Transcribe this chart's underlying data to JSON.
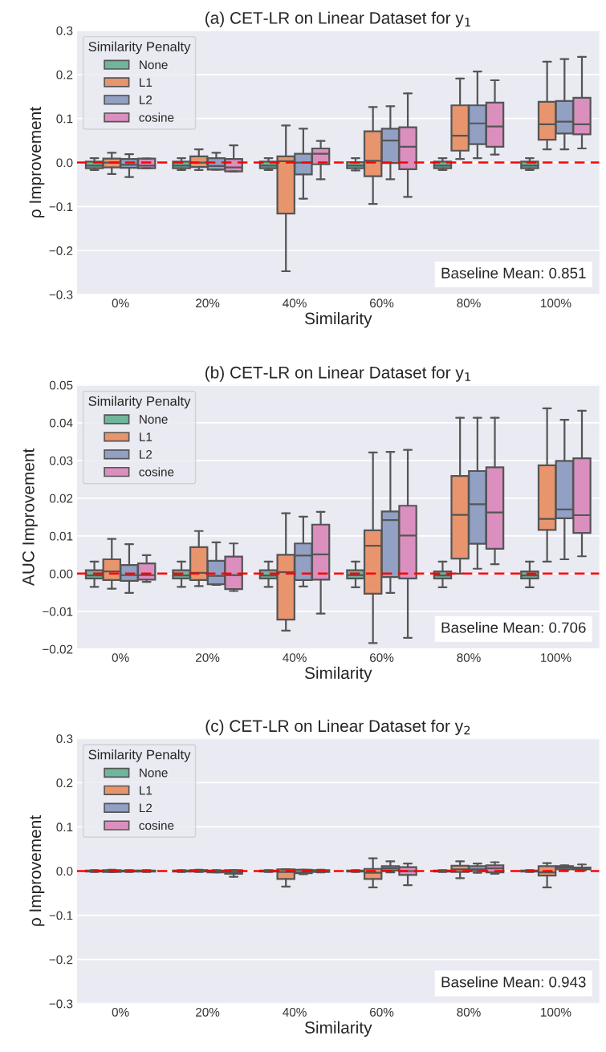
{
  "chart_data": [
    {
      "type": "box",
      "title": "(a) CET-LR on Linear Dataset for y$_{1}$",
      "xlabel": "Similarity",
      "ylabel": "ρ Improvement",
      "legend_title": "Similarity Penalty",
      "legend": "top left",
      "grid": "y",
      "categories": [
        "0%",
        "20%",
        "40%",
        "60%",
        "80%",
        "100%"
      ],
      "ylim": [
        -0.3,
        0.3
      ],
      "yticks": [
        {
          "value": -0.3,
          "label": "−0.3"
        },
        {
          "value": -0.2,
          "label": "−0.2"
        },
        {
          "value": -0.1,
          "label": "−0.1"
        },
        {
          "value": 0,
          "label": "0.0"
        },
        {
          "value": 0.1,
          "label": "0.1"
        },
        {
          "value": 0.2,
          "label": "0.2"
        },
        {
          "value": 0.3,
          "label": "0.3"
        }
      ],
      "ref_lines": [
        {
          "axis": "y",
          "value": 0,
          "color": "#ff0000",
          "line_style": "dashed"
        }
      ],
      "annotations": [
        "Baseline Mean: 0.851"
      ],
      "series": [
        {
          "name": "None",
          "color": "#71b59c",
          "boxes": [
            {
              "low": -0.017,
              "q1": -0.013,
              "median": -0.007,
              "q3": 0.002,
              "high": 0.01
            },
            {
              "low": -0.017,
              "q1": -0.013,
              "median": -0.007,
              "q3": 0.002,
              "high": 0.01
            },
            {
              "low": -0.017,
              "q1": -0.013,
              "median": -0.007,
              "q3": 0.002,
              "high": 0.01
            },
            {
              "low": -0.018,
              "q1": -0.013,
              "median": -0.007,
              "q3": 0.001,
              "high": 0.01
            },
            {
              "low": -0.017,
              "q1": -0.013,
              "median": -0.007,
              "q3": 0.002,
              "high": 0.01
            },
            {
              "low": -0.017,
              "q1": -0.013,
              "median": -0.007,
              "q3": 0.002,
              "high": 0.01
            }
          ]
        },
        {
          "name": "L1",
          "color": "#e8956e",
          "boxes": [
            {
              "low": -0.026,
              "q1": -0.011,
              "median": 0.0,
              "q3": 0.009,
              "high": 0.022
            },
            {
              "low": -0.017,
              "q1": -0.01,
              "median": 0.0,
              "q3": 0.014,
              "high": 0.03
            },
            {
              "low": -0.247,
              "q1": -0.116,
              "median": 0.003,
              "q3": 0.014,
              "high": 0.084
            },
            {
              "low": -0.094,
              "q1": -0.031,
              "median": 0.004,
              "q3": 0.071,
              "high": 0.126
            },
            {
              "low": 0.008,
              "q1": 0.027,
              "median": 0.061,
              "q3": 0.13,
              "high": 0.191
            },
            {
              "low": 0.03,
              "q1": 0.052,
              "median": 0.087,
              "q3": 0.138,
              "high": 0.229
            }
          ]
        },
        {
          "name": "L2",
          "color": "#92a0c4",
          "boxes": [
            {
              "low": -0.033,
              "q1": -0.012,
              "median": -0.005,
              "q3": 0.008,
              "high": 0.019
            },
            {
              "low": -0.016,
              "q1": -0.016,
              "median": -0.008,
              "q3": 0.01,
              "high": 0.022
            },
            {
              "low": -0.082,
              "q1": -0.027,
              "median": 0.0,
              "q3": 0.02,
              "high": 0.077
            },
            {
              "low": -0.038,
              "q1": -0.001,
              "median": 0.05,
              "q3": 0.077,
              "high": 0.128
            },
            {
              "low": 0.01,
              "q1": 0.042,
              "median": 0.089,
              "q3": 0.13,
              "high": 0.207
            },
            {
              "low": 0.03,
              "q1": 0.066,
              "median": 0.093,
              "q3": 0.14,
              "high": 0.235
            }
          ]
        },
        {
          "name": "cosine",
          "color": "#db8fbf",
          "boxes": [
            {
              "low": -0.013,
              "q1": -0.013,
              "median": -0.007,
              "q3": 0.009,
              "high": 0.009
            },
            {
              "low": -0.02,
              "q1": -0.02,
              "median": -0.011,
              "q3": 0.008,
              "high": 0.039
            },
            {
              "low": -0.038,
              "q1": -0.004,
              "median": 0.02,
              "q3": 0.032,
              "high": 0.049
            },
            {
              "low": -0.078,
              "q1": -0.015,
              "median": 0.036,
              "q3": 0.08,
              "high": 0.157
            },
            {
              "low": 0.018,
              "q1": 0.036,
              "median": 0.082,
              "q3": 0.136,
              "high": 0.187
            },
            {
              "low": 0.032,
              "q1": 0.064,
              "median": 0.087,
              "q3": 0.147,
              "high": 0.24
            }
          ]
        }
      ]
    },
    {
      "type": "box",
      "title": "(b) CET-LR on Linear Dataset for y$_{1}$",
      "xlabel": "Similarity",
      "ylabel": "AUC Improvement",
      "legend_title": "Similarity Penalty",
      "legend": "top left",
      "grid": "y",
      "categories": [
        "0%",
        "20%",
        "40%",
        "60%",
        "80%",
        "100%"
      ],
      "ylim": [
        -0.02,
        0.05
      ],
      "yticks": [
        {
          "value": -0.02,
          "label": "−0.02"
        },
        {
          "value": -0.01,
          "label": "−0.01"
        },
        {
          "value": 0,
          "label": "0.00"
        },
        {
          "value": 0.01,
          "label": "0.01"
        },
        {
          "value": 0.02,
          "label": "0.02"
        },
        {
          "value": 0.03,
          "label": "0.03"
        },
        {
          "value": 0.04,
          "label": "0.04"
        },
        {
          "value": 0.05,
          "label": "0.05"
        }
      ],
      "ref_lines": [
        {
          "axis": "y",
          "value": 0,
          "color": "#ff0000",
          "line_style": "dashed"
        }
      ],
      "annotations": [
        "Baseline Mean: 0.706"
      ],
      "series": [
        {
          "name": "None",
          "color": "#71b59c",
          "boxes": [
            {
              "low": -0.0035,
              "q1": -0.0013,
              "median": -0.0005,
              "q3": 0.0009,
              "high": 0.0032
            },
            {
              "low": -0.0035,
              "q1": -0.0013,
              "median": -0.0005,
              "q3": 0.0009,
              "high": 0.0032
            },
            {
              "low": -0.0035,
              "q1": -0.0013,
              "median": -0.0005,
              "q3": 0.0009,
              "high": 0.0032
            },
            {
              "low": -0.0036,
              "q1": -0.0013,
              "median": -0.0004,
              "q3": 0.0009,
              "high": 0.0032
            },
            {
              "low": -0.0036,
              "q1": -0.0013,
              "median": -0.0005,
              "q3": 0.0006,
              "high": 0.0032
            },
            {
              "low": -0.0036,
              "q1": -0.0013,
              "median": -0.0005,
              "q3": 0.0006,
              "high": 0.0032
            }
          ]
        },
        {
          "name": "L1",
          "color": "#e8956e",
          "boxes": [
            {
              "low": -0.004,
              "q1": -0.0017,
              "median": 0.0006,
              "q3": 0.0038,
              "high": 0.0092
            },
            {
              "low": -0.0033,
              "q1": -0.0017,
              "median": 0.0002,
              "q3": 0.007,
              "high": 0.0113
            },
            {
              "low": -0.0151,
              "q1": -0.0122,
              "median": 0.0004,
              "q3": 0.005,
              "high": 0.016
            },
            {
              "low": -0.0184,
              "q1": -0.0053,
              "median": 0.0074,
              "q3": 0.0115,
              "high": 0.0321
            },
            {
              "low": 0.0,
              "q1": 0.004,
              "median": 0.0156,
              "q3": 0.0259,
              "high": 0.0413
            },
            {
              "low": 0.0032,
              "q1": 0.0116,
              "median": 0.0145,
              "q3": 0.0287,
              "high": 0.0438
            }
          ]
        },
        {
          "name": "L2",
          "color": "#92a0c4",
          "boxes": [
            {
              "low": -0.0051,
              "q1": -0.0019,
              "median": -0.0004,
              "q3": 0.0023,
              "high": 0.0078
            },
            {
              "low": -0.003,
              "q1": -0.0028,
              "median": -0.0006,
              "q3": 0.0034,
              "high": 0.0083
            },
            {
              "low": -0.0034,
              "q1": -0.0017,
              "median": 0.0048,
              "q3": 0.008,
              "high": 0.0151
            },
            {
              "low": -0.0051,
              "q1": -0.0009,
              "median": 0.0142,
              "q3": 0.0165,
              "high": 0.0323
            },
            {
              "low": 0.0013,
              "q1": 0.0079,
              "median": 0.0184,
              "q3": 0.0272,
              "high": 0.0413
            },
            {
              "low": 0.0038,
              "q1": 0.0147,
              "median": 0.017,
              "q3": 0.0299,
              "high": 0.0408
            }
          ]
        },
        {
          "name": "cosine",
          "color": "#db8fbf",
          "boxes": [
            {
              "low": -0.0022,
              "q1": -0.0016,
              "median": -0.0004,
              "q3": 0.0027,
              "high": 0.0049
            },
            {
              "low": -0.0046,
              "q1": -0.0041,
              "median": -0.0004,
              "q3": 0.0045,
              "high": 0.008
            },
            {
              "low": -0.0106,
              "q1": -0.0016,
              "median": 0.0051,
              "q3": 0.013,
              "high": 0.0164
            },
            {
              "low": -0.017,
              "q1": -0.0013,
              "median": 0.0101,
              "q3": 0.018,
              "high": 0.0328
            },
            {
              "low": 0.0025,
              "q1": 0.0066,
              "median": 0.0162,
              "q3": 0.0282,
              "high": 0.0413
            },
            {
              "low": 0.0046,
              "q1": 0.0108,
              "median": 0.0155,
              "q3": 0.0306,
              "high": 0.0432
            }
          ]
        }
      ]
    },
    {
      "type": "box",
      "title": "(c) CET-LR on Linear Dataset for y$_{2}$",
      "xlabel": "Similarity",
      "ylabel": "ρ Improvement",
      "legend_title": "Similarity Penalty",
      "legend": "top left",
      "grid": "y",
      "categories": [
        "0%",
        "20%",
        "40%",
        "60%",
        "80%",
        "100%"
      ],
      "ylim": [
        -0.3,
        0.3
      ],
      "yticks": [
        {
          "value": -0.3,
          "label": "−0.3"
        },
        {
          "value": -0.2,
          "label": "−0.2"
        },
        {
          "value": -0.1,
          "label": "−0.1"
        },
        {
          "value": 0,
          "label": "0.0"
        },
        {
          "value": 0.1,
          "label": "0.1"
        },
        {
          "value": 0.2,
          "label": "0.2"
        },
        {
          "value": 0.3,
          "label": "0.3"
        }
      ],
      "ref_lines": [
        {
          "axis": "y",
          "value": 0,
          "color": "#ff0000",
          "line_style": "dashed"
        }
      ],
      "annotations": [
        "Baseline Mean: 0.943"
      ],
      "series": [
        {
          "name": "None",
          "color": "#71b59c",
          "boxes": [
            {
              "low": -0.002,
              "q1": -0.001,
              "median": 0.0,
              "q3": 0.001,
              "high": 0.002
            },
            {
              "low": -0.002,
              "q1": -0.001,
              "median": 0.0,
              "q3": 0.001,
              "high": 0.002
            },
            {
              "low": -0.002,
              "q1": -0.001,
              "median": 0.0,
              "q3": 0.001,
              "high": 0.002
            },
            {
              "low": -0.002,
              "q1": -0.001,
              "median": 0.0,
              "q3": 0.001,
              "high": 0.002
            },
            {
              "low": -0.002,
              "q1": -0.001,
              "median": 0.0,
              "q3": 0.001,
              "high": 0.002
            },
            {
              "low": -0.002,
              "q1": -0.001,
              "median": 0.0,
              "q3": 0.001,
              "high": 0.002
            }
          ]
        },
        {
          "name": "L1",
          "color": "#e8956e",
          "boxes": [
            {
              "low": -0.002,
              "q1": -0.002,
              "median": 0.0,
              "q3": 0.002,
              "high": 0.003
            },
            {
              "low": -0.002,
              "q1": -0.001,
              "median": 0.001,
              "q3": 0.002,
              "high": 0.003
            },
            {
              "low": -0.035,
              "q1": -0.018,
              "median": -0.002,
              "q3": 0.004,
              "high": 0.004
            },
            {
              "low": -0.037,
              "q1": -0.018,
              "median": -0.004,
              "q3": 0.005,
              "high": 0.029
            },
            {
              "low": -0.016,
              "q1": -0.002,
              "median": 0.004,
              "q3": 0.012,
              "high": 0.022
            },
            {
              "low": -0.037,
              "q1": -0.01,
              "median": -0.003,
              "q3": 0.011,
              "high": 0.018
            }
          ]
        },
        {
          "name": "L2",
          "color": "#92a0c4",
          "boxes": [
            {
              "low": -0.002,
              "q1": -0.001,
              "median": 0.0,
              "q3": 0.001,
              "high": 0.002
            },
            {
              "low": -0.003,
              "q1": -0.003,
              "median": -0.001,
              "q3": 0.001,
              "high": 0.002
            },
            {
              "low": -0.007,
              "q1": -0.005,
              "median": -0.003,
              "q3": 0.003,
              "high": 0.003
            },
            {
              "low": -0.003,
              "q1": 0.001,
              "median": 0.006,
              "q3": 0.011,
              "high": 0.022
            },
            {
              "low": -0.004,
              "q1": 0.0,
              "median": 0.004,
              "q3": 0.011,
              "high": 0.017
            },
            {
              "low": 0.002,
              "q1": 0.004,
              "median": 0.008,
              "q3": 0.011,
              "high": 0.013
            }
          ]
        },
        {
          "name": "cosine",
          "color": "#db8fbf",
          "boxes": [
            {
              "low": -0.002,
              "q1": -0.001,
              "median": 0.0,
              "q3": 0.001,
              "high": 0.002
            },
            {
              "low": -0.013,
              "q1": -0.006,
              "median": -0.003,
              "q3": 0.002,
              "high": 0.002
            },
            {
              "low": -0.003,
              "q1": -0.002,
              "median": 0.0,
              "q3": 0.002,
              "high": 0.003
            },
            {
              "low": -0.032,
              "q1": -0.009,
              "median": 0.0,
              "q3": 0.009,
              "high": 0.017
            },
            {
              "low": -0.006,
              "q1": -0.003,
              "median": 0.006,
              "q3": 0.013,
              "high": 0.02
            },
            {
              "low": 0.001,
              "q1": 0.004,
              "median": 0.006,
              "q3": 0.008,
              "high": 0.015
            }
          ]
        }
      ]
    }
  ]
}
